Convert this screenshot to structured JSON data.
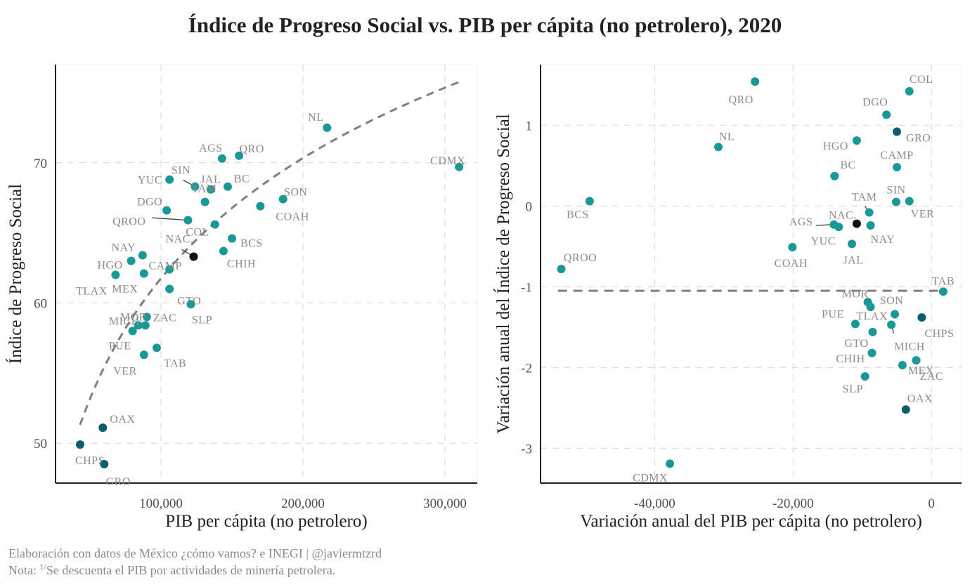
{
  "title": "Índice de Progreso Social vs. PIB per cápita (no petrolero), 2020",
  "caption": {
    "line1": "Elaboración con datos de México ¿cómo vamos? e INEGI | @javiermtzrd",
    "line2_prefix": "Nota: ",
    "line2_sup": "1/",
    "line2_text": "Se descuenta el PIB por actividades de minería petrolera."
  },
  "colors": {
    "teal": "#1a9896",
    "dark_teal": "#0b5e6e",
    "national": "#111111",
    "trend": "#7f7f7f",
    "label": "#8a8a8a"
  },
  "chart_data": [
    {
      "type": "scatter",
      "title": "",
      "xlabel": "PIB per cápita (no petrolero)",
      "ylabel": "Índice de Progreso Social",
      "xlim": [
        25700,
        322800
      ],
      "ylim": [
        47.15,
        77
      ],
      "xticks": [
        100000,
        200000,
        300000
      ],
      "xtick_labels": [
        "100,000",
        "200,000",
        "300,000"
      ],
      "yticks": [
        50,
        60,
        70
      ],
      "ytick_labels": [
        "50",
        "60",
        "70"
      ],
      "grid": true,
      "trend": {
        "type": "log",
        "style": "dashed",
        "x_range": [
          43000,
          311000
        ],
        "y_range": [
          51.3,
          75.8
        ]
      },
      "points": [
        {
          "label": "CDMX",
          "x": 310000,
          "y": 69.7,
          "group": "teal"
        },
        {
          "label": "NL",
          "x": 217000,
          "y": 72.5,
          "group": "teal"
        },
        {
          "label": "SON",
          "x": 186000,
          "y": 67.4,
          "group": "teal"
        },
        {
          "label": "COAH",
          "x": 170000,
          "y": 66.9,
          "group": "teal"
        },
        {
          "label": "QRO",
          "x": 155000,
          "y": 70.5,
          "group": "teal"
        },
        {
          "label": "AGS",
          "x": 143000,
          "y": 70.3,
          "group": "teal"
        },
        {
          "label": "BC",
          "x": 147000,
          "y": 68.3,
          "group": "teal"
        },
        {
          "label": "JAL",
          "x": 135000,
          "y": 68.1,
          "group": "teal"
        },
        {
          "label": "SIN",
          "x": 124000,
          "y": 68.3,
          "group": "teal"
        },
        {
          "label": "TAM",
          "x": 131000,
          "y": 67.2,
          "group": "teal"
        },
        {
          "label": "YUC",
          "x": 106000,
          "y": 68.8,
          "group": "teal"
        },
        {
          "label": "DGO",
          "x": 104000,
          "y": 66.6,
          "group": "teal"
        },
        {
          "label": "QROO",
          "x": 119000,
          "y": 65.9,
          "group": "teal"
        },
        {
          "label": "COL",
          "x": 138000,
          "y": 65.6,
          "group": "teal"
        },
        {
          "label": "BCS",
          "x": 150000,
          "y": 64.6,
          "group": "teal"
        },
        {
          "label": "CHIH",
          "x": 144000,
          "y": 63.7,
          "group": "teal"
        },
        {
          "label": "NAC.",
          "x": 123000,
          "y": 63.3,
          "group": "national"
        },
        {
          "label": "NAY",
          "x": 87000,
          "y": 63.4,
          "group": "teal"
        },
        {
          "label": "HGO",
          "x": 79000,
          "y": 63.0,
          "group": "teal"
        },
        {
          "label": "CAMP",
          "x": 106000,
          "y": 62.4,
          "group": "teal"
        },
        {
          "label": "TLAX",
          "x": 68000,
          "y": 62.0,
          "group": "teal"
        },
        {
          "label": "MEX",
          "x": 88000,
          "y": 62.1,
          "group": "teal"
        },
        {
          "label": "GTO",
          "x": 106000,
          "y": 61.0,
          "group": "teal"
        },
        {
          "label": "SLP",
          "x": 121000,
          "y": 59.9,
          "group": "teal"
        },
        {
          "label": "MOR",
          "x": 90000,
          "y": 59.0,
          "group": "teal"
        },
        {
          "label": "MICH",
          "x": 84000,
          "y": 58.4,
          "group": "teal"
        },
        {
          "label": "ZAC",
          "x": 89000,
          "y": 58.4,
          "group": "teal"
        },
        {
          "label": "PUE",
          "x": 80000,
          "y": 58.0,
          "group": "teal"
        },
        {
          "label": "TAB",
          "x": 97000,
          "y": 56.8,
          "group": "teal"
        },
        {
          "label": "VER",
          "x": 88000,
          "y": 56.3,
          "group": "teal"
        },
        {
          "label": "OAX",
          "x": 59000,
          "y": 51.1,
          "group": "dark_teal"
        },
        {
          "label": "CHPS",
          "x": 43000,
          "y": 49.9,
          "group": "dark_teal"
        },
        {
          "label": "GRO",
          "x": 60000,
          "y": 48.5,
          "group": "dark_teal"
        }
      ]
    },
    {
      "type": "scatter",
      "title": "",
      "xlabel": "Variación anual del PIB per cápita (no petrolero)",
      "ylabel": "Variación anual del Índice de Progreso Social",
      "xlim": [
        -56500,
        4350
      ],
      "ylim": [
        -3.43,
        1.75
      ],
      "xticks": [
        -40000,
        -20000,
        0
      ],
      "xtick_labels": [
        "-40,000",
        "-20,000",
        "0"
      ],
      "yticks": [
        -3,
        -2,
        -1,
        0,
        1
      ],
      "ytick_labels": [
        "-3",
        "-2",
        "-1",
        "0",
        "1"
      ],
      "grid": true,
      "reference_line": {
        "type": "horizontal",
        "style": "dashed",
        "y": -1.05,
        "x_range": [
          -54000,
          2000
        ]
      },
      "points": [
        {
          "label": "QRO",
          "x": -25500,
          "y": 1.54,
          "group": "teal"
        },
        {
          "label": "NL",
          "x": -30800,
          "y": 0.73,
          "group": "teal"
        },
        {
          "label": "BCS",
          "x": -49400,
          "y": 0.06,
          "group": "teal"
        },
        {
          "label": "QROO",
          "x": -53500,
          "y": -0.78,
          "group": "teal"
        },
        {
          "label": "CDMX",
          "x": -37800,
          "y": -3.19,
          "group": "teal"
        },
        {
          "label": "COL",
          "x": -3200,
          "y": 1.42,
          "group": "teal"
        },
        {
          "label": "DGO",
          "x": -6500,
          "y": 1.13,
          "group": "teal"
        },
        {
          "label": "GRO",
          "x": -5000,
          "y": 0.92,
          "group": "dark_teal"
        },
        {
          "label": "HGO",
          "x": -10800,
          "y": 0.81,
          "group": "teal"
        },
        {
          "label": "CAMP",
          "x": -5000,
          "y": 0.48,
          "group": "teal"
        },
        {
          "label": "BC",
          "x": -14000,
          "y": 0.37,
          "group": "teal"
        },
        {
          "label": "SIN",
          "x": -5100,
          "y": 0.05,
          "group": "teal"
        },
        {
          "label": "VER",
          "x": -3200,
          "y": 0.06,
          "group": "teal"
        },
        {
          "label": "TAM",
          "x": -9000,
          "y": -0.08,
          "group": "teal"
        },
        {
          "label": "NAY",
          "x": -8800,
          "y": -0.24,
          "group": "teal"
        },
        {
          "label": "NAC.",
          "x": -10800,
          "y": -0.22,
          "group": "national"
        },
        {
          "label": "AGS",
          "x": -14100,
          "y": -0.23,
          "group": "teal"
        },
        {
          "label": "YUC",
          "x": -13400,
          "y": -0.26,
          "group": "teal"
        },
        {
          "label": "JAL",
          "x": -11500,
          "y": -0.47,
          "group": "teal"
        },
        {
          "label": "COAH",
          "x": -20100,
          "y": -0.51,
          "group": "teal"
        },
        {
          "label": "TAB",
          "x": 1700,
          "y": -1.06,
          "group": "teal"
        },
        {
          "label": "MOR",
          "x": -9200,
          "y": -1.19,
          "group": "teal"
        },
        {
          "label": "SON",
          "x": -8800,
          "y": -1.25,
          "group": "teal"
        },
        {
          "label": "PUE",
          "x": -11000,
          "y": -1.46,
          "group": "teal"
        },
        {
          "label": "TLAX",
          "x": -5300,
          "y": -1.34,
          "group": "teal"
        },
        {
          "label": "CHPS",
          "x": -1400,
          "y": -1.38,
          "group": "dark_teal"
        },
        {
          "label": "MICH",
          "x": -5800,
          "y": -1.47,
          "group": "teal"
        },
        {
          "label": "GTO",
          "x": -8500,
          "y": -1.56,
          "group": "teal"
        },
        {
          "label": "CHIH",
          "x": -8600,
          "y": -1.82,
          "group": "teal"
        },
        {
          "label": "ZAC",
          "x": -2200,
          "y": -1.91,
          "group": "teal"
        },
        {
          "label": "MEX",
          "x": -4200,
          "y": -1.97,
          "group": "teal"
        },
        {
          "label": "SLP",
          "x": -9600,
          "y": -2.11,
          "group": "teal"
        },
        {
          "label": "OAX",
          "x": -3700,
          "y": -2.52,
          "group": "dark_teal"
        }
      ]
    }
  ]
}
